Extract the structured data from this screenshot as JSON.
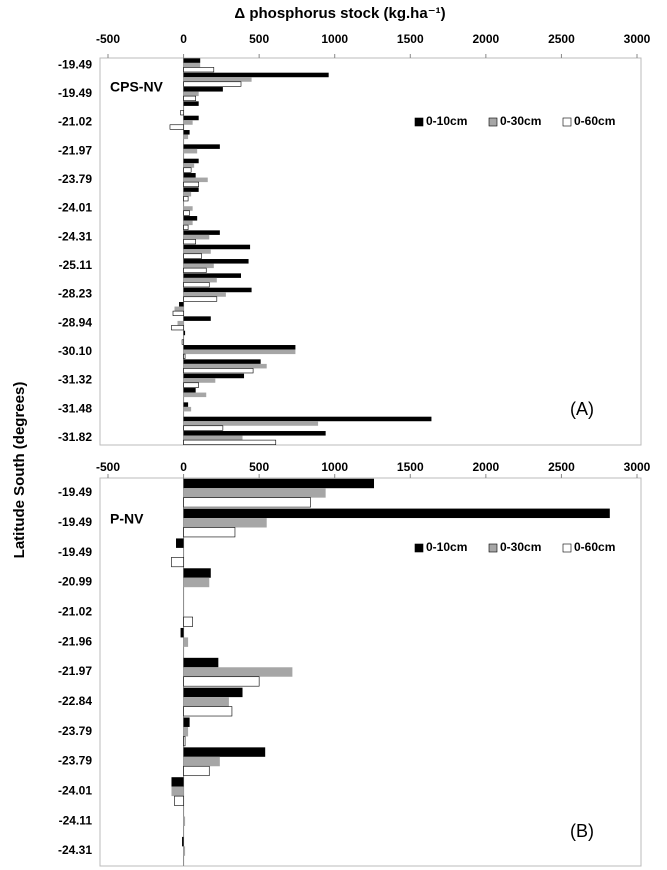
{
  "chart_data": [
    {
      "type": "bar",
      "orientation": "horizontal",
      "x_label": "Δ phosphorus stock (kg.ha⁻¹)",
      "y_label": "Latitude South (degrees)",
      "panel_label": "CPS-NV",
      "annotation": "(A)",
      "categories": [
        "-19.49",
        null,
        "-19.49",
        null,
        "-21.02",
        null,
        "-21.97",
        null,
        "-23.79",
        null,
        "-24.01",
        null,
        "-24.31",
        null,
        "-25.11",
        null,
        "-28.23",
        null,
        "-28.94",
        null,
        "-30.10",
        null,
        "-31.32",
        null,
        "-31.48",
        null,
        "-31.82"
      ],
      "series": [
        {
          "name": "0-10cm",
          "color": "#000000",
          "values": [
            110,
            960,
            260,
            100,
            100,
            40,
            240,
            100,
            80,
            100,
            0,
            90,
            240,
            440,
            430,
            380,
            450,
            -30,
            180,
            10,
            740,
            510,
            400,
            80,
            30,
            1640,
            940
          ]
        },
        {
          "name": "0-30cm",
          "color": "#a6a6a6",
          "values": [
            110,
            450,
            100,
            0,
            60,
            30,
            90,
            70,
            160,
            50,
            60,
            60,
            170,
            180,
            200,
            220,
            280,
            -60,
            -40,
            0,
            740,
            550,
            210,
            150,
            50,
            890,
            390
          ]
        },
        {
          "name": "0-60cm",
          "color": "#ffffff",
          "values": [
            200,
            380,
            80,
            -20,
            -90,
            0,
            0,
            50,
            100,
            30,
            40,
            30,
            80,
            120,
            150,
            170,
            220,
            -70,
            -80,
            -10,
            10,
            460,
            100,
            0,
            0,
            260,
            610
          ]
        }
      ],
      "xlim": [
        -500,
        3000
      ],
      "xticks": [
        -500,
        0,
        500,
        1000,
        1500,
        2000,
        2500,
        3000
      ],
      "legend": "upper right"
    },
    {
      "type": "bar",
      "orientation": "horizontal",
      "panel_label": "P-NV",
      "annotation": "(B)",
      "categories": [
        "-19.49",
        "-19.49",
        "-19.49",
        "-20.99",
        "-21.02",
        "-21.96",
        "-21.97",
        "-22.84",
        "-23.79",
        "-23.79",
        "-24.01",
        "-24.11",
        "-24.31"
      ],
      "series": [
        {
          "name": "0-10cm",
          "color": "#000000",
          "values": [
            1260,
            2820,
            -50,
            180,
            0,
            -20,
            230,
            390,
            40,
            540,
            -80,
            0,
            -10
          ]
        },
        {
          "name": "0-30cm",
          "color": "#a6a6a6",
          "values": [
            940,
            550,
            0,
            170,
            0,
            30,
            720,
            300,
            30,
            240,
            -80,
            10,
            10
          ]
        },
        {
          "name": "0-60cm",
          "color": "#ffffff",
          "values": [
            840,
            340,
            -80,
            0,
            60,
            0,
            500,
            320,
            10,
            170,
            -60,
            0,
            0
          ]
        }
      ],
      "xlim": [
        -500,
        3000
      ],
      "xticks": [
        -500,
        0,
        500,
        1000,
        1500,
        2000,
        2500,
        3000
      ],
      "legend": "upper right"
    }
  ]
}
